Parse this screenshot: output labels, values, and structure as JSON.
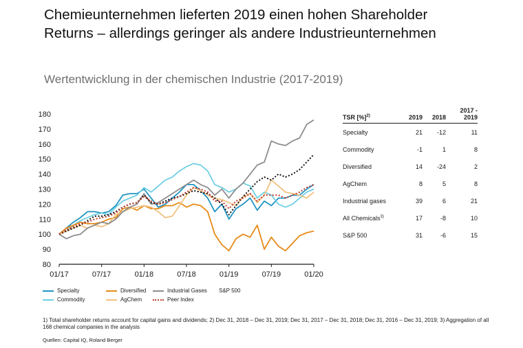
{
  "title_line1": "Chemieunternehmen lieferten 2019 einen hohen Shareholder",
  "title_line2": "Returns – allerdings geringer als andere Industrieunternehmen",
  "chart_data": {
    "type": "line",
    "title": "Wertentwicklung in der chemischen Industrie (2017-2019)",
    "xlabel": "",
    "ylabel": "",
    "ylim": [
      80,
      180
    ],
    "yticks": [
      80,
      90,
      100,
      110,
      120,
      130,
      140,
      150,
      160,
      170,
      180
    ],
    "xlim": [
      0,
      36
    ],
    "xticks": [
      {
        "x": 0,
        "label": "01/17"
      },
      {
        "x": 6,
        "label": "07/17"
      },
      {
        "x": 12,
        "label": "01/18"
      },
      {
        "x": 18,
        "label": "07/18"
      },
      {
        "x": 24,
        "label": "01/19"
      },
      {
        "x": 30,
        "label": "07/19"
      },
      {
        "x": 36,
        "label": "01/20"
      }
    ],
    "x": [
      0,
      1,
      2,
      3,
      4,
      5,
      6,
      7,
      8,
      9,
      10,
      11,
      12,
      13,
      14,
      15,
      16,
      17,
      18,
      19,
      20,
      21,
      22,
      23,
      24,
      25,
      26,
      27,
      28,
      29,
      30,
      31,
      32,
      33,
      34,
      35,
      36
    ],
    "series": [
      {
        "name": "Specialty",
        "color": "#1f93c3",
        "dash": "solid",
        "values": [
          100,
          104,
          108,
          111,
          115,
          115,
          114,
          115,
          119,
          126,
          127,
          127,
          130,
          124,
          118,
          120,
          124,
          128,
          133,
          133,
          129,
          124,
          115,
          120,
          110,
          117,
          120,
          124,
          116,
          122,
          119,
          124,
          124,
          126,
          126,
          130,
          133
        ]
      },
      {
        "name": "Commodity",
        "color": "#6ecfe3",
        "dash": "solid",
        "values": [
          100,
          102,
          106,
          109,
          111,
          113,
          114,
          113,
          118,
          122,
          124,
          126,
          131,
          128,
          132,
          136,
          138,
          142,
          145,
          147,
          146,
          142,
          133,
          131,
          128,
          130,
          134,
          132,
          124,
          128,
          126,
          120,
          118,
          120,
          124,
          128,
          130
        ]
      },
      {
        "name": "Diversified",
        "color": "#e58a17",
        "dash": "solid",
        "values": [
          100,
          104,
          106,
          108,
          107,
          107,
          108,
          110,
          111,
          117,
          118,
          116,
          119,
          117,
          117,
          119,
          119,
          121,
          118,
          120,
          119,
          115,
          100,
          93,
          89,
          97,
          100,
          98,
          106,
          90,
          98,
          92,
          89,
          94,
          99,
          101,
          102
        ]
      },
      {
        "name": "AgChem",
        "color": "#f2c07e",
        "dash": "solid",
        "values": [
          100,
          102,
          104,
          106,
          104,
          106,
          105,
          107,
          113,
          115,
          117,
          118,
          119,
          118,
          115,
          111,
          112,
          119,
          126,
          131,
          129,
          126,
          124,
          123,
          121,
          119,
          125,
          127,
          121,
          126,
          136,
          132,
          128,
          127,
          126,
          124,
          128
        ]
      },
      {
        "name": "Industrial Gases",
        "color": "#8c8c8c",
        "dash": "solid",
        "values": [
          100,
          97,
          99,
          100,
          104,
          106,
          108,
          107,
          110,
          115,
          118,
          120,
          127,
          120,
          121,
          124,
          127,
          130,
          133,
          136,
          133,
          131,
          126,
          130,
          124,
          130,
          134,
          140,
          146,
          148,
          162,
          160,
          159,
          162,
          164,
          173,
          176
        ]
      },
      {
        "name": "S&P 500",
        "color": "#111111",
        "dash": "dotted",
        "values": [
          100,
          102,
          104,
          106,
          109,
          112,
          112,
          113,
          115,
          118,
          120,
          121,
          126,
          121,
          120,
          122,
          124,
          125,
          127,
          129,
          128,
          127,
          124,
          120,
          113,
          119,
          125,
          130,
          135,
          138,
          136,
          140,
          138,
          140,
          143,
          148,
          153
        ]
      },
      {
        "name": "Peer Index",
        "color": "#c0392b",
        "dash": "dotted",
        "values": [
          100,
          103,
          105,
          107,
          108,
          110,
          111,
          112,
          114,
          118,
          120,
          121,
          125,
          122,
          120,
          121,
          123,
          125,
          128,
          131,
          130,
          128,
          122,
          122,
          117,
          122,
          124,
          127,
          122,
          126,
          126,
          126,
          124,
          126,
          128,
          131,
          133
        ]
      }
    ]
  },
  "legend": [
    {
      "label": "Specialty",
      "color": "#1f93c3",
      "dotted": false
    },
    {
      "label": "Diversified",
      "color": "#e58a17",
      "dotted": false
    },
    {
      "label": "Industrial Gases",
      "color": "#8c8c8c",
      "dotted": false
    },
    {
      "label": "S&P 500",
      "color": "#111111",
      "dotted": true
    },
    {
      "label": "Commodity",
      "color": "#6ecfe3",
      "dotted": false
    },
    {
      "label": "AgChem",
      "color": "#f2c07e",
      "dotted": false
    },
    {
      "label": "Peer Index",
      "color": "#c0392b",
      "dotted": true
    }
  ],
  "table": {
    "headers": [
      "TSR [%]",
      "2019",
      "2018",
      "2017 -",
      "2019"
    ],
    "header_sup": "2)",
    "rows": [
      {
        "label": "Specialty",
        "sup": "",
        "v2019": "21",
        "v2018": "-12",
        "v1719": "11"
      },
      {
        "label": "Commodity",
        "sup": "",
        "v2019": "-1",
        "v2018": "1",
        "v1719": "8"
      },
      {
        "label": "Diversified",
        "sup": "",
        "v2019": "14",
        "v2018": "-24",
        "v1719": "2"
      },
      {
        "label": "AgChem",
        "sup": "",
        "v2019": "8",
        "v2018": "5",
        "v1719": "8"
      },
      {
        "label": "Industrial gases",
        "sup": "",
        "v2019": "39",
        "v2018": "6",
        "v1719": "21"
      },
      {
        "label": "All Chemicals",
        "sup": "3)",
        "v2019": "17",
        "v2018": "-8",
        "v1719": "10"
      },
      {
        "label": "S&P 500",
        "sup": "",
        "v2019": "31",
        "v2018": "-6",
        "v1719": "15"
      }
    ]
  },
  "footnote": "1) Total shareholder returns account for capital gains and dividends; 2) Dec 31, 2018 – Dec 31, 2019; Dec 31, 2017 – Dec 31, 2018; Dec 31, 2016 – Dec 31, 2019; 3) Aggregation of all 168 chemical companies in the analysis",
  "source": "Quellen: Capital IQ, Roland Berger"
}
